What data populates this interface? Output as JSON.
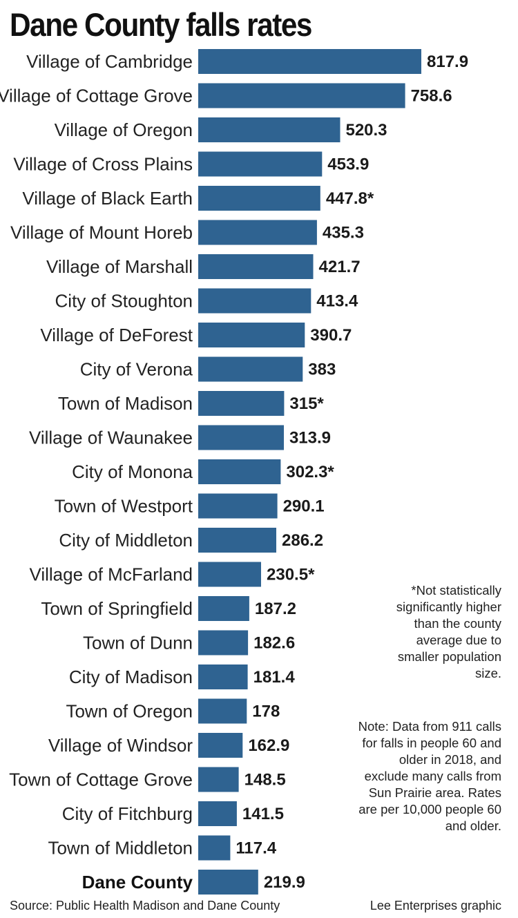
{
  "chart_data": {
    "type": "bar",
    "orientation": "horizontal",
    "title": "Dane County falls rates",
    "categories": [
      "Village of Cambridge",
      "Village of Cottage Grove",
      "Village of Oregon",
      "Village of Cross Plains",
      "Village of Black Earth",
      "Village of Mount Horeb",
      "Village of Marshall",
      "City of Stoughton",
      "Village of DeForest",
      "City of Verona",
      "Town of Madison",
      "Village of Waunakee",
      "City of Monona",
      "Town of Westport",
      "City of Middleton",
      "Village of McFarland",
      "Town of Springfield",
      "Town of Dunn",
      "City of Madison",
      "Town of Oregon",
      "Village of Windsor",
      "Town of Cottage Grove",
      "City of Fitchburg",
      "Town of Middleton",
      "Dane County"
    ],
    "values": [
      817.9,
      758.6,
      520.3,
      453.9,
      447.8,
      435.3,
      421.7,
      413.4,
      390.7,
      383,
      315,
      313.9,
      302.3,
      290.1,
      286.2,
      230.5,
      187.2,
      182.6,
      181.4,
      178,
      162.9,
      148.5,
      141.5,
      117.4,
      219.9
    ],
    "value_labels": [
      "817.9",
      "758.6",
      "520.3",
      "453.9",
      "447.8*",
      "435.3",
      "421.7",
      "413.4",
      "390.7",
      "383",
      "315*",
      "313.9",
      "302.3*",
      "290.1",
      "286.2",
      "230.5*",
      "187.2",
      "182.6",
      "181.4",
      "178",
      "162.9",
      "148.5",
      "141.5",
      "117.4",
      "219.9"
    ],
    "highlight_category": "Dane County",
    "xlim": [
      0,
      817.9
    ],
    "grid": false,
    "bar_color": "#2f6391"
  },
  "notes": {
    "footnote": "*Not statistically significantly higher than the county average due to smaller population size.",
    "data_note": "Note: Data from 911 calls for falls in people 60 and older in 2018, and exclude many calls from Sun Prairie area. Rates are per 10,000 people 60 and older."
  },
  "footer": {
    "source": "Source: Public Health Madison and Dane County",
    "credit": "Lee Enterprises graphic"
  }
}
